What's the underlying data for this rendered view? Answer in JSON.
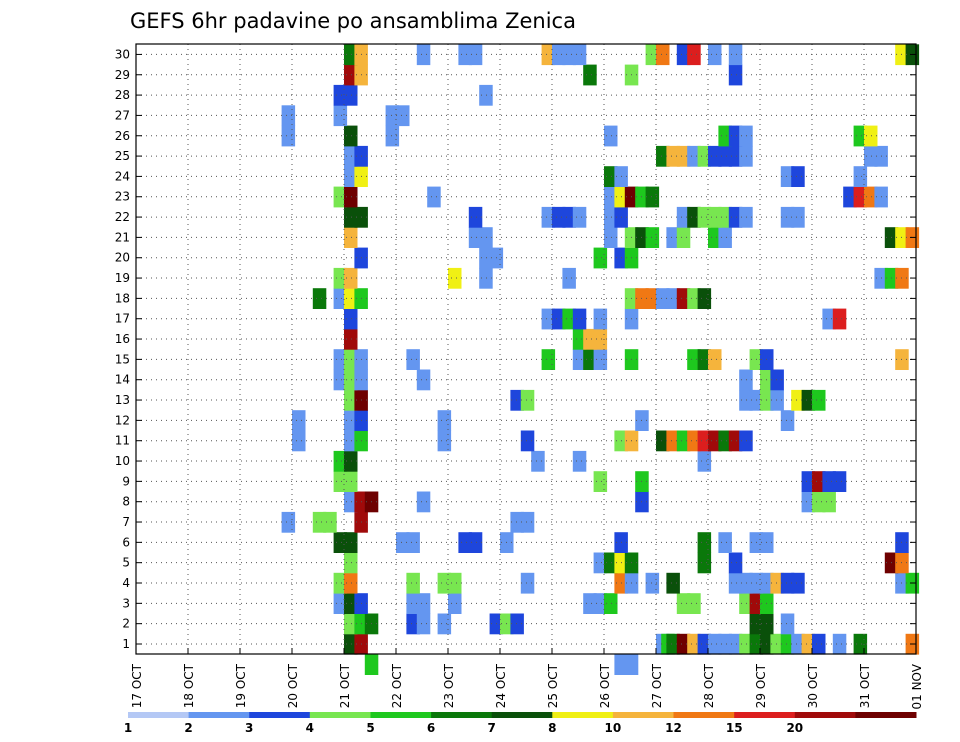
{
  "chart_data": {
    "type": "heatmap",
    "title": "GEFS 6hr padavine po ansamblima Zenica",
    "xlabel": "",
    "ylabel": "",
    "x_tick_labels": [
      "17 OCT",
      "18 OCT",
      "19 OCT",
      "20 OCT",
      "21 OCT",
      "22 OCT",
      "23 OCT",
      "24 OCT",
      "25 OCT",
      "26 OCT",
      "27 OCT",
      "28 OCT",
      "29 OCT",
      "30 OCT",
      "31 OCT",
      "01 NOV"
    ],
    "y_tick_labels": [
      "1",
      "2",
      "3",
      "4",
      "5",
      "6",
      "7",
      "8",
      "9",
      "10",
      "11",
      "12",
      "13",
      "14",
      "15",
      "16",
      "17",
      "18",
      "19",
      "20",
      "21",
      "22",
      "23",
      "24",
      "25",
      "26",
      "27",
      "28",
      "29",
      "30"
    ],
    "grid": true,
    "levels": [
      "1",
      "2",
      "3",
      "4",
      "5",
      "6",
      "7",
      "8",
      "10",
      "12",
      "15",
      "20"
    ],
    "colors": [
      "#b4c8f5",
      "#6496f0",
      "#1e46dc",
      "#78e650",
      "#1ec81e",
      "#0a780a",
      "#0a500a",
      "#f0f014",
      "#f5b43c",
      "#f07814",
      "#dc1e1e",
      "#a00a0a",
      "#6e0000"
    ],
    "cells": [
      [
        21.0,
        1,
        6
      ],
      [
        21.2,
        1,
        11
      ],
      [
        27.0,
        1,
        1
      ],
      [
        27.1,
        1,
        4
      ],
      [
        27.2,
        1,
        5
      ],
      [
        27.4,
        1,
        12
      ],
      [
        27.6,
        1,
        8
      ],
      [
        27.8,
        1,
        2
      ],
      [
        28.0,
        1,
        1
      ],
      [
        28.2,
        1,
        1
      ],
      [
        28.4,
        1,
        1
      ],
      [
        28.6,
        1,
        3
      ],
      [
        28.8,
        1,
        5
      ],
      [
        29.0,
        1,
        6
      ],
      [
        29.2,
        1,
        3
      ],
      [
        29.4,
        1,
        4
      ],
      [
        29.6,
        1,
        1
      ],
      [
        29.8,
        1,
        8
      ],
      [
        30.0,
        1,
        2
      ],
      [
        30.4,
        1,
        1
      ],
      [
        30.8,
        1,
        5
      ],
      [
        31.8,
        1,
        9
      ],
      [
        21.0,
        2,
        3
      ],
      [
        21.2,
        2,
        4
      ],
      [
        21.4,
        2,
        5
      ],
      [
        22.2,
        2,
        2
      ],
      [
        22.4,
        2,
        1
      ],
      [
        22.8,
        2,
        1
      ],
      [
        23.8,
        2,
        2
      ],
      [
        24.0,
        2,
        3
      ],
      [
        24.2,
        2,
        2
      ],
      [
        28.8,
        2,
        6
      ],
      [
        29.0,
        2,
        6
      ],
      [
        29.4,
        2,
        1
      ],
      [
        20.8,
        3,
        1
      ],
      [
        21.0,
        3,
        6
      ],
      [
        21.2,
        3,
        2
      ],
      [
        22.2,
        3,
        1
      ],
      [
        22.4,
        3,
        1
      ],
      [
        23.0,
        3,
        1
      ],
      [
        25.6,
        3,
        1
      ],
      [
        25.8,
        3,
        1
      ],
      [
        26.0,
        3,
        4
      ],
      [
        27.4,
        3,
        3
      ],
      [
        27.6,
        3,
        3
      ],
      [
        28.6,
        3,
        3
      ],
      [
        28.8,
        3,
        11
      ],
      [
        29.0,
        3,
        4
      ],
      [
        20.8,
        4,
        3
      ],
      [
        21.0,
        4,
        9
      ],
      [
        22.2,
        4,
        3
      ],
      [
        22.8,
        4,
        3
      ],
      [
        23.0,
        4,
        3
      ],
      [
        24.4,
        4,
        1
      ],
      [
        26.2,
        4,
        9
      ],
      [
        26.4,
        4,
        1
      ],
      [
        26.8,
        4,
        1
      ],
      [
        27.2,
        4,
        6
      ],
      [
        28.4,
        4,
        1
      ],
      [
        28.6,
        4,
        1
      ],
      [
        28.8,
        4,
        1
      ],
      [
        29.0,
        4,
        1
      ],
      [
        29.2,
        4,
        8
      ],
      [
        29.4,
        4,
        2
      ],
      [
        29.6,
        4,
        2
      ],
      [
        31.6,
        4,
        1
      ],
      [
        31.8,
        4,
        4
      ],
      [
        21.0,
        5,
        3
      ],
      [
        25.8,
        5,
        1
      ],
      [
        26.0,
        5,
        5
      ],
      [
        26.2,
        5,
        7
      ],
      [
        26.4,
        5,
        5
      ],
      [
        27.8,
        5,
        5
      ],
      [
        28.4,
        5,
        2
      ],
      [
        31.4,
        5,
        12
      ],
      [
        31.6,
        5,
        9
      ],
      [
        20.8,
        6,
        6
      ],
      [
        21.0,
        6,
        6
      ],
      [
        22.0,
        6,
        1
      ],
      [
        22.2,
        6,
        1
      ],
      [
        23.2,
        6,
        2
      ],
      [
        23.4,
        6,
        2
      ],
      [
        24.0,
        6,
        1
      ],
      [
        26.2,
        6,
        2
      ],
      [
        27.8,
        6,
        5
      ],
      [
        28.2,
        6,
        1
      ],
      [
        28.8,
        6,
        1
      ],
      [
        29.0,
        6,
        1
      ],
      [
        31.6,
        6,
        2
      ],
      [
        19.8,
        7,
        1
      ],
      [
        20.4,
        7,
        3
      ],
      [
        20.6,
        7,
        3
      ],
      [
        21.2,
        7,
        11
      ],
      [
        24.2,
        7,
        1
      ],
      [
        24.4,
        7,
        1
      ],
      [
        21.0,
        8,
        1
      ],
      [
        21.2,
        8,
        11
      ],
      [
        21.4,
        8,
        12
      ],
      [
        22.4,
        8,
        1
      ],
      [
        26.6,
        8,
        2
      ],
      [
        29.8,
        8,
        1
      ],
      [
        30.0,
        8,
        3
      ],
      [
        30.2,
        8,
        3
      ],
      [
        20.8,
        9,
        3
      ],
      [
        21.0,
        9,
        3
      ],
      [
        25.8,
        9,
        3
      ],
      [
        26.6,
        9,
        4
      ],
      [
        29.8,
        9,
        2
      ],
      [
        30.0,
        9,
        11
      ],
      [
        30.2,
        9,
        2
      ],
      [
        30.4,
        9,
        2
      ],
      [
        20.8,
        10,
        4
      ],
      [
        21.0,
        10,
        6
      ],
      [
        24.6,
        10,
        1
      ],
      [
        25.4,
        10,
        1
      ],
      [
        27.8,
        10,
        1
      ],
      [
        20.0,
        11,
        1
      ],
      [
        21.0,
        11,
        1
      ],
      [
        21.2,
        11,
        4
      ],
      [
        22.8,
        11,
        1
      ],
      [
        24.4,
        11,
        2
      ],
      [
        26.2,
        11,
        3
      ],
      [
        26.4,
        11,
        8
      ],
      [
        27.0,
        11,
        6
      ],
      [
        27.2,
        11,
        9
      ],
      [
        27.4,
        11,
        4
      ],
      [
        27.6,
        11,
        9
      ],
      [
        27.8,
        11,
        10
      ],
      [
        28.0,
        11,
        11
      ],
      [
        28.2,
        11,
        5
      ],
      [
        28.4,
        11,
        11
      ],
      [
        28.6,
        11,
        2
      ],
      [
        20.0,
        12,
        1
      ],
      [
        21.0,
        12,
        1
      ],
      [
        21.2,
        12,
        2
      ],
      [
        22.8,
        12,
        1
      ],
      [
        26.6,
        12,
        1
      ],
      [
        29.4,
        12,
        1
      ],
      [
        21.0,
        13,
        3
      ],
      [
        21.2,
        13,
        12
      ],
      [
        24.2,
        13,
        2
      ],
      [
        24.4,
        13,
        3
      ],
      [
        28.6,
        13,
        1
      ],
      [
        28.8,
        13,
        1
      ],
      [
        29.0,
        13,
        3
      ],
      [
        29.2,
        13,
        1
      ],
      [
        29.6,
        13,
        7
      ],
      [
        29.8,
        13,
        6
      ],
      [
        30.0,
        13,
        4
      ],
      [
        20.8,
        14,
        1
      ],
      [
        21.0,
        14,
        3
      ],
      [
        21.2,
        14,
        1
      ],
      [
        22.4,
        14,
        1
      ],
      [
        28.6,
        14,
        1
      ],
      [
        29.0,
        14,
        3
      ],
      [
        29.2,
        14,
        2
      ],
      [
        20.8,
        15,
        1
      ],
      [
        21.0,
        15,
        3
      ],
      [
        21.2,
        15,
        1
      ],
      [
        22.2,
        15,
        1
      ],
      [
        24.8,
        15,
        4
      ],
      [
        25.4,
        15,
        1
      ],
      [
        25.6,
        15,
        5
      ],
      [
        25.8,
        15,
        1
      ],
      [
        26.4,
        15,
        4
      ],
      [
        27.6,
        15,
        4
      ],
      [
        27.8,
        15,
        5
      ],
      [
        28.0,
        15,
        8
      ],
      [
        28.8,
        15,
        3
      ],
      [
        29.0,
        15,
        2
      ],
      [
        31.6,
        15,
        8
      ],
      [
        21.0,
        16,
        11
      ],
      [
        25.4,
        16,
        4
      ],
      [
        25.6,
        16,
        8
      ],
      [
        25.8,
        16,
        8
      ],
      [
        21.0,
        17,
        2
      ],
      [
        24.8,
        17,
        1
      ],
      [
        25.0,
        17,
        2
      ],
      [
        25.2,
        17,
        4
      ],
      [
        25.4,
        17,
        2
      ],
      [
        25.8,
        17,
        1
      ],
      [
        26.4,
        17,
        1
      ],
      [
        30.2,
        17,
        1
      ],
      [
        30.4,
        17,
        10
      ],
      [
        20.4,
        18,
        5
      ],
      [
        20.8,
        18,
        1
      ],
      [
        21.0,
        18,
        7
      ],
      [
        21.2,
        18,
        4
      ],
      [
        26.4,
        18,
        3
      ],
      [
        26.6,
        18,
        9
      ],
      [
        26.8,
        18,
        9
      ],
      [
        27.0,
        18,
        1
      ],
      [
        27.2,
        18,
        1
      ],
      [
        27.4,
        18,
        11
      ],
      [
        27.6,
        18,
        3
      ],
      [
        27.8,
        18,
        6
      ],
      [
        20.8,
        19,
        3
      ],
      [
        21.0,
        19,
        8
      ],
      [
        23.0,
        19,
        7
      ],
      [
        23.6,
        19,
        1
      ],
      [
        25.2,
        19,
        1
      ],
      [
        31.2,
        19,
        1
      ],
      [
        31.4,
        19,
        4
      ],
      [
        31.6,
        19,
        9
      ],
      [
        21.2,
        20,
        2
      ],
      [
        23.6,
        20,
        1
      ],
      [
        23.8,
        20,
        1
      ],
      [
        25.8,
        20,
        4
      ],
      [
        26.2,
        20,
        2
      ],
      [
        26.4,
        20,
        4
      ],
      [
        21.0,
        21,
        8
      ],
      [
        23.4,
        21,
        1
      ],
      [
        23.6,
        21,
        1
      ],
      [
        26.0,
        21,
        1
      ],
      [
        26.4,
        21,
        3
      ],
      [
        26.6,
        21,
        6
      ],
      [
        26.8,
        21,
        4
      ],
      [
        27.2,
        21,
        1
      ],
      [
        27.4,
        21,
        3
      ],
      [
        28.0,
        21,
        4
      ],
      [
        28.2,
        21,
        1
      ],
      [
        31.4,
        21,
        6
      ],
      [
        31.6,
        21,
        7
      ],
      [
        31.8,
        21,
        9
      ],
      [
        21.0,
        22,
        6
      ],
      [
        21.2,
        22,
        6
      ],
      [
        23.4,
        22,
        2
      ],
      [
        24.8,
        22,
        1
      ],
      [
        25.0,
        22,
        2
      ],
      [
        25.2,
        22,
        2
      ],
      [
        25.4,
        22,
        1
      ],
      [
        26.0,
        22,
        1
      ],
      [
        26.2,
        22,
        2
      ],
      [
        27.4,
        22,
        1
      ],
      [
        27.6,
        22,
        6
      ],
      [
        27.8,
        22,
        3
      ],
      [
        28.0,
        22,
        3
      ],
      [
        28.2,
        22,
        3
      ],
      [
        28.4,
        22,
        2
      ],
      [
        28.6,
        22,
        1
      ],
      [
        29.4,
        22,
        1
      ],
      [
        29.6,
        22,
        1
      ],
      [
        20.8,
        23,
        3
      ],
      [
        21.0,
        23,
        12
      ],
      [
        22.6,
        23,
        1
      ],
      [
        26.0,
        23,
        1
      ],
      [
        26.2,
        23,
        7
      ],
      [
        26.4,
        23,
        12
      ],
      [
        26.6,
        23,
        4
      ],
      [
        26.8,
        23,
        5
      ],
      [
        30.6,
        23,
        2
      ],
      [
        30.8,
        23,
        10
      ],
      [
        31.0,
        23,
        9
      ],
      [
        31.2,
        23,
        1
      ],
      [
        21.0,
        24,
        1
      ],
      [
        21.2,
        24,
        7
      ],
      [
        26.0,
        24,
        5
      ],
      [
        26.2,
        24,
        1
      ],
      [
        29.4,
        24,
        1
      ],
      [
        29.6,
        24,
        2
      ],
      [
        30.8,
        24,
        1
      ],
      [
        21.0,
        25,
        1
      ],
      [
        21.2,
        25,
        2
      ],
      [
        27.0,
        25,
        5
      ],
      [
        27.2,
        25,
        8
      ],
      [
        27.4,
        25,
        8
      ],
      [
        27.6,
        25,
        1
      ],
      [
        27.8,
        25,
        3
      ],
      [
        28.0,
        25,
        2
      ],
      [
        28.2,
        25,
        2
      ],
      [
        28.4,
        25,
        2
      ],
      [
        28.6,
        25,
        1
      ],
      [
        31.0,
        25,
        1
      ],
      [
        31.2,
        25,
        1
      ],
      [
        19.8,
        26,
        1
      ],
      [
        21.0,
        26,
        6
      ],
      [
        21.8,
        26,
        1
      ],
      [
        26.0,
        26,
        1
      ],
      [
        28.2,
        26,
        4
      ],
      [
        28.4,
        26,
        2
      ],
      [
        28.6,
        26,
        1
      ],
      [
        30.8,
        26,
        4
      ],
      [
        31.0,
        26,
        7
      ],
      [
        19.8,
        27,
        1
      ],
      [
        20.8,
        27,
        1
      ],
      [
        21.8,
        27,
        1
      ],
      [
        22.0,
        27,
        1
      ],
      [
        20.8,
        28,
        2
      ],
      [
        21.0,
        28,
        2
      ],
      [
        23.6,
        28,
        1
      ],
      [
        21.0,
        29,
        11
      ],
      [
        21.2,
        29,
        8
      ],
      [
        25.6,
        29,
        5
      ],
      [
        26.4,
        29,
        3
      ],
      [
        28.4,
        29,
        2
      ],
      [
        21.0,
        30,
        5
      ],
      [
        21.2,
        30,
        8
      ],
      [
        22.4,
        30,
        1
      ],
      [
        23.2,
        30,
        1
      ],
      [
        23.4,
        30,
        1
      ],
      [
        24.8,
        30,
        8
      ],
      [
        25.0,
        30,
        1
      ],
      [
        25.2,
        30,
        1
      ],
      [
        25.4,
        30,
        1
      ],
      [
        26.8,
        30,
        3
      ],
      [
        27.0,
        30,
        9
      ],
      [
        27.4,
        30,
        2
      ],
      [
        27.6,
        30,
        10
      ],
      [
        28.0,
        30,
        1
      ],
      [
        28.4,
        30,
        1
      ],
      [
        31.6,
        30,
        7
      ],
      [
        31.8,
        30,
        6
      ],
      [
        21.4,
        0,
        4
      ],
      [
        26.2,
        0,
        1
      ],
      [
        26.4,
        0,
        1
      ]
    ]
  }
}
